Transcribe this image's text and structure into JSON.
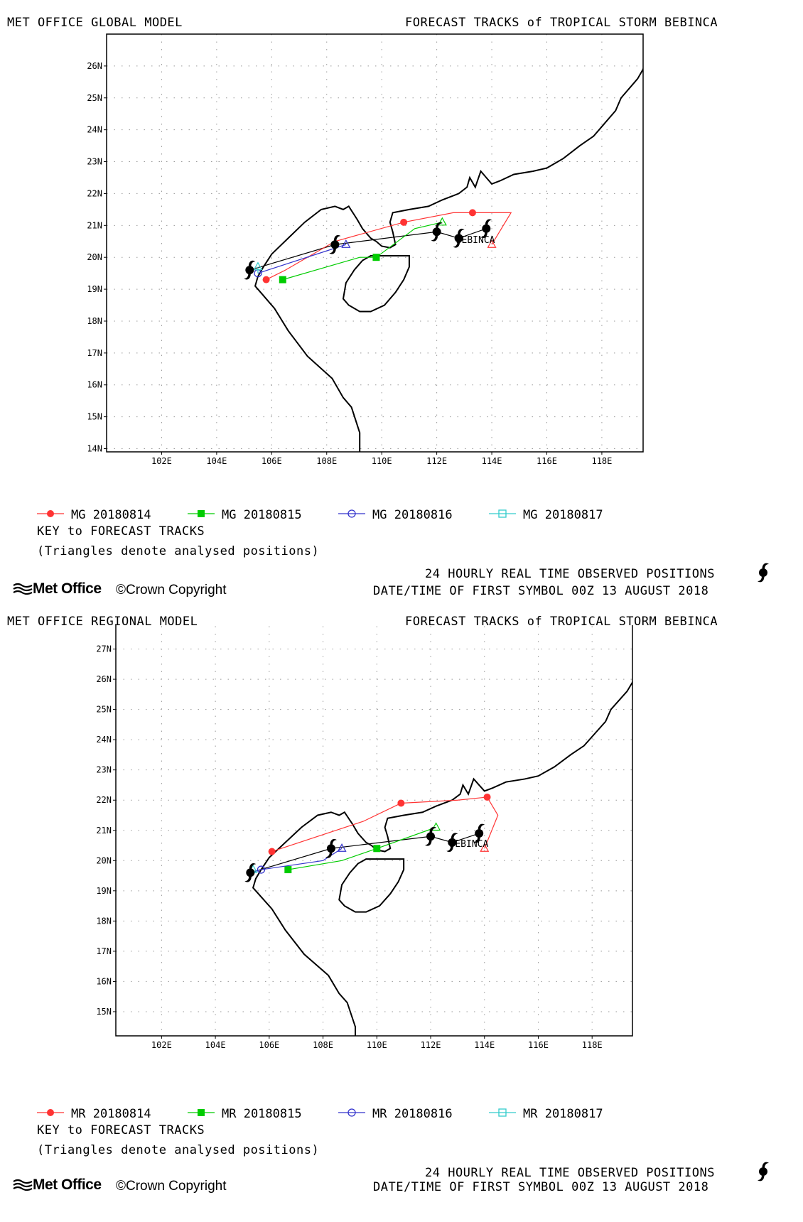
{
  "panels": [
    {
      "model_title": "MET OFFICE GLOBAL MODEL",
      "storm_title": "FORECAST TRACKS of TROPICAL STORM BEBINCA",
      "key_title": "KEY to FORECAST TRACKS",
      "triangle_note": "(Triangles denote analysed positions)",
      "observed_label": "24 HOURLY REAL TIME OBSERVED POSITIONS",
      "first_symbol": "DATE/TIME OF FIRST SYMBOL 00Z 13 AUGUST 2018",
      "logo_text": "Met Office",
      "copyright": "©Crown Copyright",
      "storm_label": "BEBINCA",
      "legend": [
        {
          "label": "MG 20180814",
          "color": "#ff3333",
          "marker": "circle-filled"
        },
        {
          "label": "MG 20180815",
          "color": "#00cc00",
          "marker": "square-filled"
        },
        {
          "label": "MG 20180816",
          "color": "#3333cc",
          "marker": "circle-open"
        },
        {
          "label": "MG 20180817",
          "color": "#33cccc",
          "marker": "square-open"
        }
      ],
      "chart_data": {
        "type": "line",
        "xlim": [
          100,
          119.5
        ],
        "ylim": [
          13.9,
          27
        ],
        "x_ticks": [
          "102E",
          "104E",
          "106E",
          "108E",
          "110E",
          "112E",
          "114E",
          "116E",
          "118E"
        ],
        "y_ticks": [
          "14N",
          "15N",
          "16N",
          "17N",
          "18N",
          "19N",
          "20N",
          "21N",
          "22N",
          "23N",
          "24N",
          "25N",
          "26N"
        ],
        "observed": [
          [
            113.8,
            20.9
          ],
          [
            112.8,
            20.6
          ],
          [
            112.0,
            20.8
          ],
          [
            108.3,
            20.4
          ],
          [
            105.2,
            19.6
          ]
        ],
        "series": [
          {
            "name": "MG 20180814",
            "color": "#ff3333",
            "marker": "circle-filled",
            "analysed": [
              114.0,
              20.4
            ],
            "points": [
              [
                113.3,
                21.4
              ],
              [
                110.8,
                21.1
              ],
              [
                105.8,
                19.3
              ]
            ],
            "path": [
              [
                114.0,
                20.4
              ],
              [
                114.7,
                21.4
              ],
              [
                113.3,
                21.4
              ],
              [
                112.6,
                21.4
              ],
              [
                110.8,
                21.1
              ],
              [
                108.3,
                20.5
              ],
              [
                106.5,
                19.6
              ],
              [
                105.8,
                19.3
              ]
            ]
          },
          {
            "name": "MG 20180815",
            "color": "#00cc00",
            "marker": "square-filled",
            "analysed": [
              112.2,
              21.1
            ],
            "points": [
              [
                109.8,
                20.0
              ],
              [
                106.4,
                19.3
              ]
            ],
            "path": [
              [
                112.2,
                21.1
              ],
              [
                111.2,
                20.9
              ],
              [
                109.8,
                20.0
              ],
              [
                109.2,
                20.0
              ],
              [
                106.4,
                19.3
              ]
            ]
          },
          {
            "name": "MG 20180816",
            "color": "#3333cc",
            "marker": "circle-open",
            "analysed": [
              108.7,
              20.4
            ],
            "points": [
              [
                105.5,
                19.5
              ]
            ],
            "path": [
              [
                108.7,
                20.4
              ],
              [
                105.5,
                19.5
              ]
            ]
          },
          {
            "name": "MG 20180817",
            "color": "#33cccc",
            "marker": "square-open",
            "analysed": [
              105.5,
              19.7
            ],
            "points": [],
            "path": [
              [
                105.5,
                19.7
              ],
              [
                105.5,
                19.5
              ]
            ]
          }
        ]
      }
    },
    {
      "model_title": "MET OFFICE REGIONAL MODEL",
      "storm_title": "FORECAST TRACKS of TROPICAL STORM BEBINCA",
      "key_title": "KEY to FORECAST TRACKS",
      "triangle_note": "(Triangles denote analysed positions)",
      "observed_label": "24 HOURLY REAL TIME OBSERVED POSITIONS",
      "first_symbol": "DATE/TIME OF FIRST SYMBOL 00Z 13 AUGUST 2018",
      "logo_text": "Met Office",
      "copyright": "©Crown Copyright",
      "storm_label": "BEBINCA",
      "legend": [
        {
          "label": "MR 20180814",
          "color": "#ff3333",
          "marker": "circle-filled"
        },
        {
          "label": "MR 20180815",
          "color": "#00cc00",
          "marker": "square-filled"
        },
        {
          "label": "MR 20180816",
          "color": "#3333cc",
          "marker": "circle-open"
        },
        {
          "label": "MR 20180817",
          "color": "#33cccc",
          "marker": "square-open"
        }
      ],
      "chart_data": {
        "type": "line",
        "xlim": [
          100.3,
          119.5
        ],
        "ylim": [
          14.2,
          28
        ],
        "x_ticks": [
          "102E",
          "104E",
          "106E",
          "108E",
          "110E",
          "112E",
          "114E",
          "116E",
          "118E"
        ],
        "y_ticks": [
          "15N",
          "16N",
          "17N",
          "18N",
          "19N",
          "20N",
          "21N",
          "22N",
          "23N",
          "24N",
          "25N",
          "26N",
          "27N"
        ],
        "observed": [
          [
            113.8,
            20.9
          ],
          [
            112.8,
            20.6
          ],
          [
            112.0,
            20.8
          ],
          [
            108.3,
            20.4
          ],
          [
            105.3,
            19.6
          ]
        ],
        "series": [
          {
            "name": "MR 20180814",
            "color": "#ff3333",
            "marker": "circle-filled",
            "analysed": [
              114.0,
              20.4
            ],
            "points": [
              [
                114.1,
                22.1
              ],
              [
                110.9,
                21.9
              ],
              [
                106.1,
                20.3
              ]
            ],
            "path": [
              [
                114.0,
                20.4
              ],
              [
                114.5,
                21.5
              ],
              [
                114.1,
                22.1
              ],
              [
                113.0,
                22.0
              ],
              [
                110.9,
                21.9
              ],
              [
                109.5,
                21.3
              ],
              [
                106.1,
                20.3
              ]
            ]
          },
          {
            "name": "MR 20180815",
            "color": "#00cc00",
            "marker": "square-filled",
            "analysed": [
              112.2,
              21.1
            ],
            "points": [
              [
                110.0,
                20.4
              ],
              [
                106.7,
                19.7
              ]
            ],
            "path": [
              [
                112.2,
                21.1
              ],
              [
                110.0,
                20.4
              ],
              [
                108.7,
                20.0
              ],
              [
                106.7,
                19.7
              ]
            ]
          },
          {
            "name": "MR 20180816",
            "color": "#3333cc",
            "marker": "circle-open",
            "analysed": [
              108.7,
              20.4
            ],
            "points": [
              [
                105.7,
                19.7
              ]
            ],
            "path": [
              [
                108.7,
                20.4
              ],
              [
                108.0,
                20.0
              ],
              [
                105.7,
                19.7
              ],
              [
                105.3,
                19.6
              ]
            ]
          },
          {
            "name": "MR 20180817",
            "color": "#33cccc",
            "marker": "square-open",
            "analysed": [
              105.4,
              19.7
            ],
            "points": [],
            "path": [
              [
                105.4,
                19.7
              ],
              [
                105.5,
                19.6
              ]
            ]
          }
        ]
      }
    }
  ],
  "colors": {
    "observed": "#000000",
    "coast": "#000000",
    "grid": "#999999"
  },
  "icons": [
    "cyclone-icon",
    "met-office-logo-icon"
  ]
}
